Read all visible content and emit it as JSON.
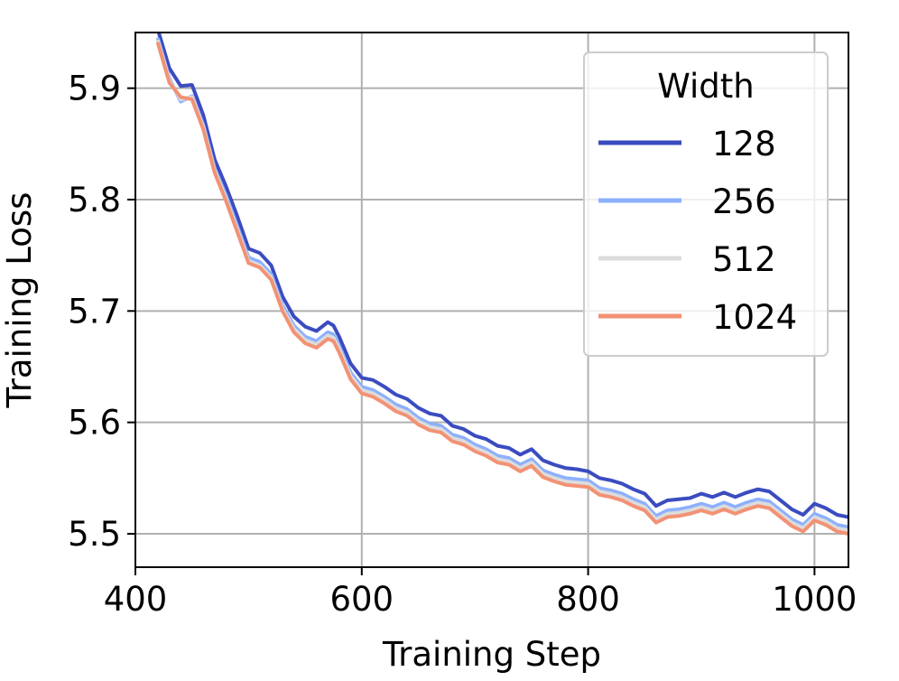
{
  "chart_data": {
    "type": "line",
    "xlabel": "Training Step",
    "ylabel": "Training Loss",
    "xlim": [
      400,
      1030
    ],
    "ylim": [
      5.47,
      5.95
    ],
    "xticks": [
      400,
      600,
      800,
      1000
    ],
    "xtick_labels": [
      "400",
      "600",
      "800",
      "1000"
    ],
    "yticks": [
      5.5,
      5.6,
      5.7,
      5.8,
      5.9
    ],
    "ytick_labels": [
      "5.5",
      "5.6",
      "5.7",
      "5.8",
      "5.9"
    ],
    "grid": true,
    "legend": {
      "title": "Width",
      "placement": "top-right",
      "entries": [
        "128",
        "256",
        "512",
        "1024"
      ]
    },
    "series": [
      {
        "name": "128",
        "color": "#3b4cc0",
        "x": [
          420,
          430,
          440,
          450,
          460,
          470,
          480,
          490,
          500,
          510,
          520,
          530,
          540,
          550,
          560,
          570,
          575,
          580,
          590,
          600,
          610,
          620,
          630,
          640,
          650,
          660,
          670,
          680,
          690,
          700,
          710,
          720,
          730,
          740,
          750,
          760,
          770,
          780,
          790,
          800,
          810,
          820,
          830,
          840,
          850,
          860,
          870,
          880,
          890,
          900,
          910,
          920,
          930,
          940,
          950,
          960,
          970,
          980,
          990,
          1000,
          1010,
          1020,
          1030
        ],
        "y": [
          5.952,
          5.918,
          5.902,
          5.903,
          5.876,
          5.836,
          5.812,
          5.785,
          5.756,
          5.752,
          5.741,
          5.713,
          5.695,
          5.686,
          5.682,
          5.69,
          5.687,
          5.677,
          5.653,
          5.64,
          5.638,
          5.632,
          5.625,
          5.621,
          5.613,
          5.608,
          5.606,
          5.597,
          5.594,
          5.588,
          5.585,
          5.579,
          5.577,
          5.571,
          5.576,
          5.566,
          5.562,
          5.559,
          5.558,
          5.556,
          5.55,
          5.548,
          5.545,
          5.54,
          5.536,
          5.525,
          5.53,
          5.531,
          5.532,
          5.536,
          5.533,
          5.537,
          5.533,
          5.537,
          5.54,
          5.538,
          5.53,
          5.522,
          5.517,
          5.527,
          5.523,
          5.517,
          5.515
        ]
      },
      {
        "name": "256",
        "color": "#8db0fe",
        "x": [
          420,
          430,
          440,
          450,
          460,
          470,
          480,
          490,
          500,
          510,
          520,
          530,
          540,
          550,
          560,
          570,
          575,
          580,
          590,
          600,
          610,
          620,
          630,
          640,
          650,
          660,
          670,
          680,
          690,
          700,
          710,
          720,
          730,
          740,
          750,
          760,
          770,
          780,
          790,
          800,
          810,
          820,
          830,
          840,
          850,
          860,
          870,
          880,
          890,
          900,
          910,
          920,
          930,
          940,
          950,
          960,
          970,
          980,
          990,
          1000,
          1010,
          1020,
          1030
        ],
        "y": [
          5.944,
          5.909,
          5.888,
          5.893,
          5.867,
          5.828,
          5.804,
          5.776,
          5.748,
          5.744,
          5.733,
          5.705,
          5.687,
          5.677,
          5.673,
          5.681,
          5.679,
          5.669,
          5.645,
          5.632,
          5.629,
          5.623,
          5.616,
          5.612,
          5.604,
          5.599,
          5.597,
          5.589,
          5.586,
          5.58,
          5.576,
          5.57,
          5.568,
          5.562,
          5.567,
          5.557,
          5.553,
          5.55,
          5.549,
          5.548,
          5.541,
          5.539,
          5.536,
          5.531,
          5.527,
          5.516,
          5.521,
          5.522,
          5.524,
          5.527,
          5.524,
          5.528,
          5.524,
          5.528,
          5.531,
          5.529,
          5.521,
          5.513,
          5.508,
          5.518,
          5.514,
          5.508,
          5.506
        ]
      },
      {
        "name": "512",
        "color": "#dddcdc",
        "x": [
          420,
          430,
          440,
          450,
          460,
          470,
          480,
          490,
          500,
          510,
          520,
          530,
          540,
          550,
          560,
          570,
          575,
          580,
          590,
          600,
          610,
          620,
          630,
          640,
          650,
          660,
          670,
          680,
          690,
          700,
          710,
          720,
          730,
          740,
          750,
          760,
          770,
          780,
          790,
          800,
          810,
          820,
          830,
          840,
          850,
          860,
          870,
          880,
          890,
          900,
          910,
          920,
          930,
          940,
          950,
          960,
          970,
          980,
          990,
          1000,
          1010,
          1020,
          1030
        ],
        "y": [
          5.942,
          5.907,
          5.89,
          5.892,
          5.865,
          5.826,
          5.801,
          5.773,
          5.745,
          5.741,
          5.73,
          5.702,
          5.684,
          5.674,
          5.67,
          5.678,
          5.676,
          5.666,
          5.642,
          5.629,
          5.626,
          5.62,
          5.613,
          5.609,
          5.601,
          5.596,
          5.594,
          5.586,
          5.583,
          5.577,
          5.573,
          5.567,
          5.565,
          5.559,
          5.564,
          5.554,
          5.55,
          5.547,
          5.546,
          5.545,
          5.538,
          5.536,
          5.533,
          5.528,
          5.524,
          5.513,
          5.518,
          5.519,
          5.521,
          5.524,
          5.521,
          5.525,
          5.521,
          5.525,
          5.528,
          5.526,
          5.518,
          5.51,
          5.505,
          5.515,
          5.511,
          5.505,
          5.503
        ]
      },
      {
        "name": "1024",
        "color": "#f29274",
        "x": [
          420,
          430,
          440,
          450,
          460,
          470,
          480,
          490,
          500,
          510,
          520,
          530,
          540,
          550,
          560,
          570,
          575,
          580,
          590,
          600,
          610,
          620,
          630,
          640,
          650,
          660,
          670,
          680,
          690,
          700,
          710,
          720,
          730,
          740,
          750,
          760,
          770,
          780,
          790,
          800,
          810,
          820,
          830,
          840,
          850,
          860,
          870,
          880,
          890,
          900,
          910,
          920,
          930,
          940,
          950,
          960,
          970,
          980,
          990,
          1000,
          1010,
          1020,
          1030
        ],
        "y": [
          5.94,
          5.905,
          5.892,
          5.89,
          5.863,
          5.824,
          5.799,
          5.771,
          5.743,
          5.739,
          5.728,
          5.7,
          5.681,
          5.671,
          5.667,
          5.675,
          5.673,
          5.663,
          5.639,
          5.626,
          5.623,
          5.617,
          5.61,
          5.606,
          5.598,
          5.593,
          5.591,
          5.583,
          5.58,
          5.574,
          5.57,
          5.564,
          5.562,
          5.556,
          5.561,
          5.551,
          5.547,
          5.544,
          5.543,
          5.542,
          5.535,
          5.533,
          5.53,
          5.525,
          5.521,
          5.51,
          5.515,
          5.516,
          5.518,
          5.521,
          5.518,
          5.522,
          5.518,
          5.522,
          5.525,
          5.523,
          5.515,
          5.507,
          5.502,
          5.512,
          5.508,
          5.502,
          5.5
        ]
      }
    ]
  }
}
